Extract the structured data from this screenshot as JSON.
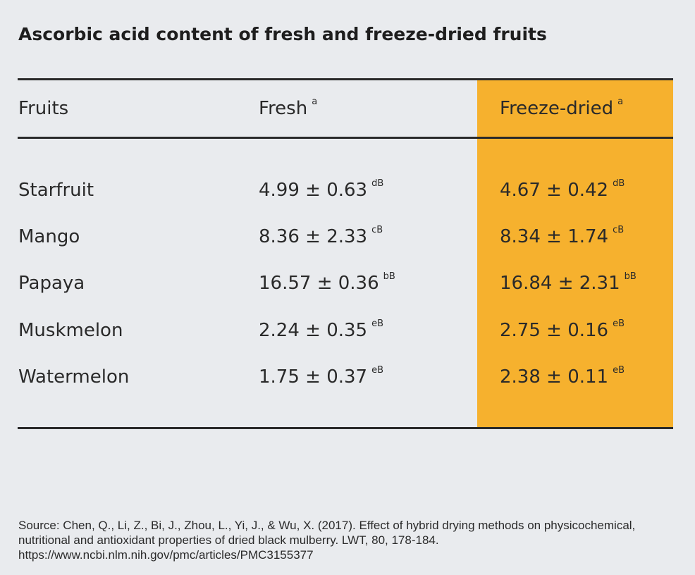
{
  "title": "Ascorbic acid content of fresh and freeze-dried fruits",
  "table": {
    "headers": [
      {
        "text": "Fruits",
        "sup": ""
      },
      {
        "text": "Fresh",
        "sup": "a"
      },
      {
        "text": "Freeze-dried",
        "sup": "a"
      }
    ],
    "rows": [
      {
        "fruit": "Starfruit",
        "fresh": "4.99 ± 0.63",
        "fresh_sup": "dB",
        "dried": "4.67 ± 0.42",
        "dried_sup": "dB"
      },
      {
        "fruit": "Mango",
        "fresh": "8.36 ± 2.33",
        "fresh_sup": "cB",
        "dried": "8.34 ± 1.74",
        "dried_sup": "cB"
      },
      {
        "fruit": "Papaya",
        "fresh": "16.57 ± 0.36",
        "fresh_sup": "bB",
        "dried": "16.84 ± 2.31",
        "dried_sup": "bB"
      },
      {
        "fruit": "Muskmelon",
        "fresh": "2.24 ± 0.35",
        "fresh_sup": "eB",
        "dried": "2.75 ± 0.16",
        "dried_sup": "eB"
      },
      {
        "fruit": "Watermelon",
        "fresh": "1.75 ± 0.37",
        "fresh_sup": "eB",
        "dried": "2.38 ± 0.11",
        "dried_sup": "eB"
      }
    ]
  },
  "highlight_color": "#f6b12e",
  "source": "Source: Chen, Q., Li, Z., Bi, J., Zhou, L., Yi, J., & Wu, X. (2017). Effect of hybrid drying methods on physicochemical, nutritional and antioxidant properties of dried black mulberry. LWT, 80, 178-184. https://www.ncbi.nlm.nih.gov/pmc/articles/PMC3155377"
}
